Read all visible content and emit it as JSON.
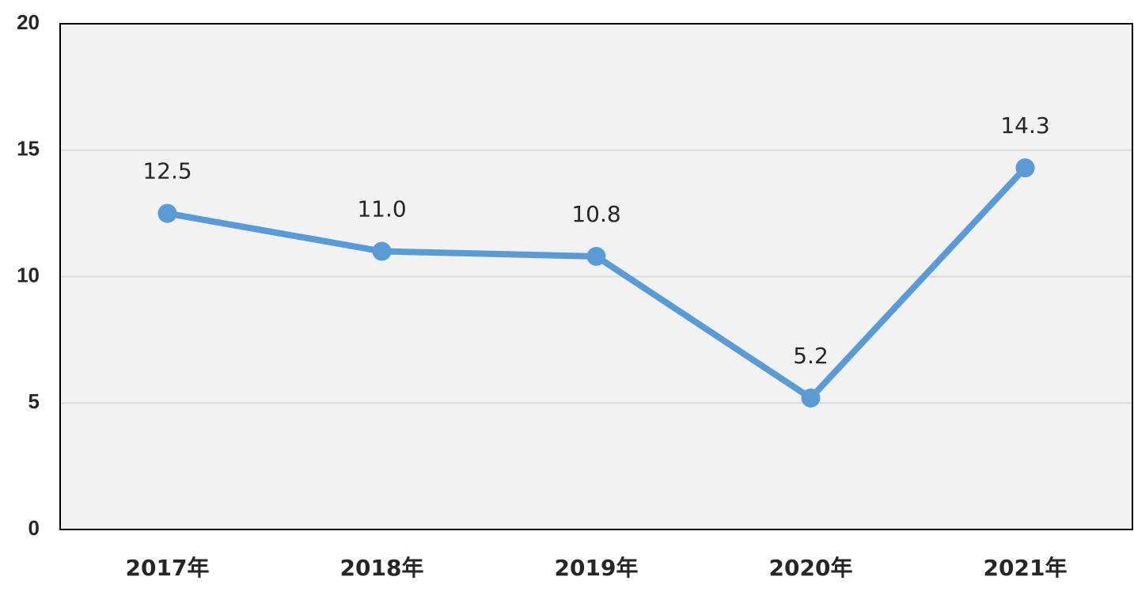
{
  "chart_data": {
    "type": "line",
    "title": "",
    "xlabel": "",
    "ylabel": "",
    "categories": [
      "2017年",
      "2018年",
      "2019年",
      "2020年",
      "2021年"
    ],
    "series": [
      {
        "values": [
          12.5,
          11.0,
          10.8,
          5.2,
          14.3
        ],
        "data_labels": [
          "12.5",
          "11.0",
          "10.8",
          "5.2",
          "14.3"
        ],
        "color": "#5b9bd5"
      }
    ],
    "ylim": [
      0,
      20
    ],
    "yticks": [
      0,
      5,
      10,
      15,
      20
    ],
    "ytick_labels": [
      "0",
      "5",
      "10",
      "15",
      "20"
    ],
    "grid": true,
    "legend": "none",
    "colors": {
      "plot_background": "#f2f2f2",
      "gridline": "#d9d9d9",
      "axis_border": "#000000",
      "text": "#262626"
    }
  }
}
